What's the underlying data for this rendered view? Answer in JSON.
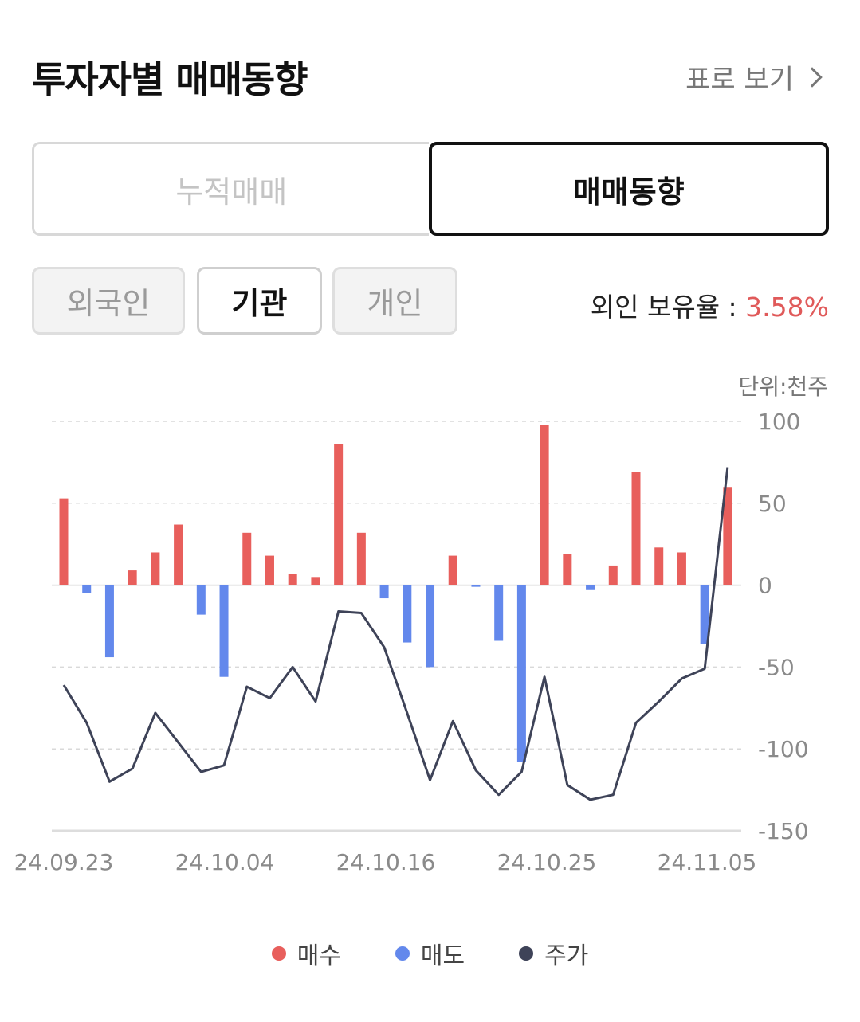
{
  "header": {
    "title": "투자자별 매매동향",
    "table_link": "표로 보기"
  },
  "main_tabs": [
    {
      "label": "누적매매",
      "active": false
    },
    {
      "label": "매매동향",
      "active": true
    }
  ],
  "sub_tabs": [
    {
      "label": "외국인",
      "active": false
    },
    {
      "label": "기관",
      "active": true
    },
    {
      "label": "개인",
      "active": false
    }
  ],
  "foreign_ratio": {
    "label": "외인 보유율 : ",
    "value": "3.58%"
  },
  "unit": "단위:천주",
  "colors": {
    "buy": "#e85f5c",
    "sell": "#6388ec",
    "price": "#3e4358",
    "ratio": "#e05a5a"
  },
  "chart_data": {
    "type": "bar",
    "ylim": [
      -150,
      100
    ],
    "yticks": [
      100,
      50,
      0,
      -50,
      -100,
      -150
    ],
    "x_tick_labels": [
      "24.09.23",
      "24.10.04",
      "24.10.16",
      "24.10.25",
      "24.11.05"
    ],
    "bar_values": [
      53,
      -5,
      -44,
      9,
      20,
      37,
      -18,
      -56,
      32,
      18,
      7,
      5,
      86,
      32,
      -8,
      -35,
      -50,
      18,
      -1,
      -34,
      -108,
      98,
      19,
      -3,
      12,
      69,
      23,
      20,
      -36,
      60
    ],
    "price_line_yaxis_units": [
      -61,
      -84,
      -120,
      -112,
      -78,
      -96,
      -114,
      -110,
      -62,
      -69,
      -50,
      -71,
      -16,
      -17,
      -38,
      -78,
      -119,
      -83,
      -113,
      -128,
      -114,
      -56,
      -122,
      -131,
      -128,
      -84,
      -71,
      -57,
      -51,
      72
    ],
    "legend": [
      {
        "name": "매수",
        "color": "#e85f5c"
      },
      {
        "name": "매도",
        "color": "#6388ec"
      },
      {
        "name": "주가",
        "color": "#3e4358"
      }
    ]
  }
}
